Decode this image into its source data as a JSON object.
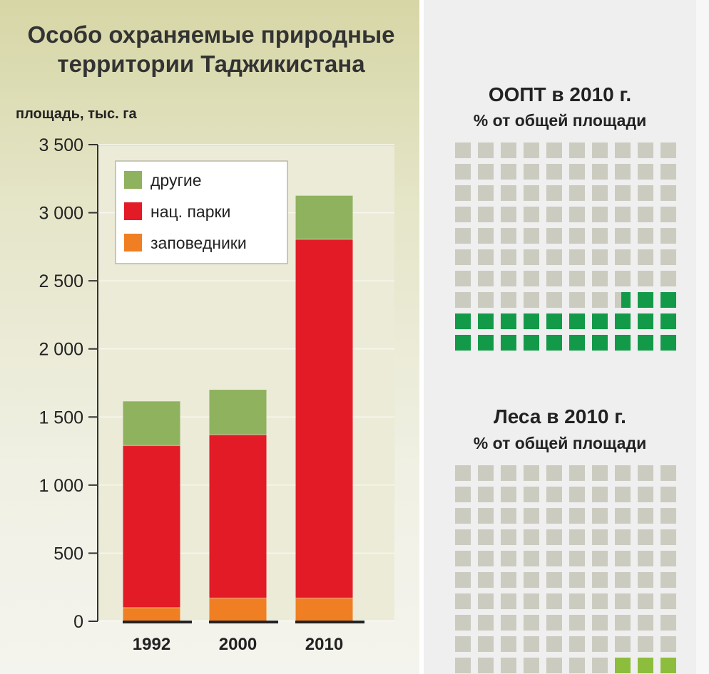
{
  "title_lines": [
    "Особо охраняемые природные",
    "территории Таджикистана"
  ],
  "colors": {
    "other": "#8fb25e",
    "national_parks": "#e21b27",
    "reserves": "#ef7f22",
    "waffle_empty": "#cbcbc0",
    "waffle_oopt": "#139a48",
    "waffle_forest": "#8dbd3c"
  },
  "chart_data": {
    "type": "bar",
    "stacked": true,
    "title": "Особо охраняемые природные территории Таджикистана",
    "ylabel": "площадь, тыс. га",
    "xlabel": "",
    "ylim": [
      0,
      3500
    ],
    "yticks": [
      0,
      500,
      1000,
      1500,
      2000,
      2500,
      3000,
      3500
    ],
    "ytick_labels": [
      "0",
      "500",
      "1 000",
      "1 500",
      "2 000",
      "2 500",
      "3 000",
      "3 500"
    ],
    "categories": [
      "1992",
      "2000",
      "2010"
    ],
    "series": [
      {
        "name": "заповедники",
        "color": "#ef7f22",
        "values": [
          100,
          170,
          170
        ]
      },
      {
        "name": "нац. парки",
        "color": "#e21b27",
        "values": [
          1190,
          1200,
          2635
        ]
      },
      {
        "name": "другие",
        "color": "#8fb25e",
        "values": [
          325,
          330,
          320
        ]
      }
    ],
    "legend": {
      "position": "top-left",
      "order": [
        "другие",
        "нац. парки",
        "заповедники"
      ]
    }
  },
  "waffles": [
    {
      "title": "ООПТ в 2010 г.",
      "subtitle": "% от общей площади",
      "percent": 22.6,
      "filled_color": "#139a48"
    },
    {
      "title": "Леса в 2010 г.",
      "subtitle": "% от общей площади",
      "percent": 3,
      "filled_color": "#8dbd3c"
    }
  ]
}
